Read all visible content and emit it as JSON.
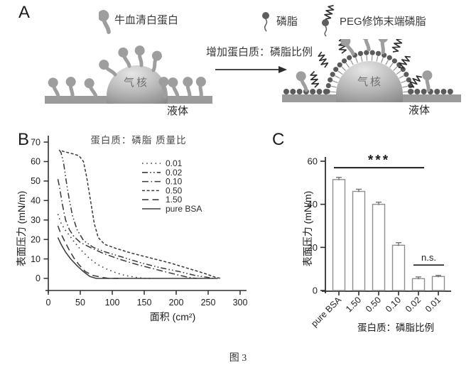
{
  "panels": {
    "a": "A",
    "b": "B",
    "c": "C"
  },
  "caption": "图 3",
  "panelA": {
    "legend_bsa": "牛血清白蛋白",
    "legend_lipid": "磷脂",
    "legend_peg": "PEG修饰末端磷脂",
    "arrow_label": "增加蛋白质：磷脂比例",
    "gas_core_left": "气核",
    "gas_core_right": "气核",
    "liquid_left": "液体",
    "liquid_right": "液体"
  },
  "colors": {
    "curve": "#3d3d3d",
    "axis": "#2f2f2f",
    "bar_outline": "#8f8f8f",
    "error_bar": "#6e6e6e",
    "schematic_gray": "#9b9b9b",
    "lipid_head": "#5b5b5b"
  },
  "chart_data": [
    {
      "type": "line",
      "title": "蛋白质：磷脂 质量比",
      "xlabel": "面积 (cm²)",
      "ylabel": "表面压力 (mN/m)",
      "xlim": [
        0,
        300
      ],
      "ylim": [
        0,
        70
      ],
      "xticks": [
        0,
        50,
        100,
        150,
        200,
        250,
        300
      ],
      "yticks": [
        0,
        10,
        20,
        30,
        40,
        50,
        60,
        70
      ],
      "legend_position": "upper-right-inside",
      "grid": false,
      "series": [
        {
          "name": "0.01",
          "style": "dotted",
          "points": [
            [
              15,
              33
            ],
            [
              19,
              29
            ],
            [
              25,
              25.5
            ],
            [
              32,
              22.5
            ],
            [
              40,
              19
            ],
            [
              50,
              15
            ],
            [
              62,
              11
            ],
            [
              75,
              7.5
            ],
            [
              90,
              5
            ],
            [
              105,
              3
            ],
            [
              120,
              1.5
            ],
            [
              138,
              0.5
            ],
            [
              152,
              0
            ],
            [
              165,
              0
            ]
          ]
        },
        {
          "name": "0.02",
          "style": "dash-dot-dot",
          "points": [
            [
              17,
              66
            ],
            [
              20,
              64.5
            ],
            [
              24,
              59
            ],
            [
              28,
              50
            ],
            [
              33,
              40
            ],
            [
              38,
              32
            ],
            [
              45,
              25
            ],
            [
              55,
              19.5
            ],
            [
              70,
              16
            ],
            [
              90,
              13.5
            ],
            [
              115,
              11
            ],
            [
              145,
              8
            ],
            [
              175,
              5.5
            ],
            [
              205,
              3.5
            ],
            [
              230,
              1.5
            ],
            [
              250,
              0.5
            ],
            [
              258,
              0
            ]
          ]
        },
        {
          "name": "0.10",
          "style": "dash-dot",
          "points": [
            [
              15,
              51
            ],
            [
              18,
              46
            ],
            [
              22,
              38
            ],
            [
              27,
              30
            ],
            [
              33,
              25
            ],
            [
              40,
              21.5
            ],
            [
              50,
              18.5
            ],
            [
              65,
              16
            ],
            [
              85,
              13
            ],
            [
              110,
              10
            ],
            [
              140,
              7
            ],
            [
              170,
              4.5
            ],
            [
              200,
              2
            ],
            [
              220,
              0.5
            ],
            [
              232,
              0
            ]
          ]
        },
        {
          "name": "0.50",
          "style": "dashed",
          "points": [
            [
              21,
              65.5
            ],
            [
              28,
              64.8
            ],
            [
              38,
              64
            ],
            [
              48,
              63
            ],
            [
              55,
              60
            ],
            [
              60,
              52
            ],
            [
              66,
              40
            ],
            [
              72,
              28
            ],
            [
              78,
              21
            ],
            [
              88,
              17.5
            ],
            [
              105,
              15.5
            ],
            [
              130,
              13
            ],
            [
              160,
              10.5
            ],
            [
              190,
              8
            ],
            [
              220,
              5
            ],
            [
              245,
              2.5
            ],
            [
              262,
              0.5
            ],
            [
              270,
              0
            ]
          ]
        },
        {
          "name": "1.50",
          "style": "long-dash",
          "points": [
            [
              15,
              27
            ],
            [
              19,
              23.5
            ],
            [
              25,
              19.5
            ],
            [
              32,
              15
            ],
            [
              40,
              10.5
            ],
            [
              48,
              7
            ],
            [
              58,
              3.5
            ],
            [
              70,
              1.5
            ],
            [
              85,
              0.5
            ],
            [
              95,
              0
            ],
            [
              110,
              0
            ]
          ]
        },
        {
          "name": "pure BSA",
          "style": "solid",
          "points": [
            [
              15,
              21
            ],
            [
              20,
              17.5
            ],
            [
              27,
              13.5
            ],
            [
              35,
              10
            ],
            [
              45,
              6.5
            ],
            [
              55,
              3.5
            ],
            [
              65,
              1
            ],
            [
              75,
              0
            ],
            [
              265,
              0
            ]
          ]
        }
      ]
    },
    {
      "type": "bar",
      "categories": [
        "pure BSA",
        "1.50",
        "0.50",
        "0.10",
        "0.02",
        "0.01"
      ],
      "values": [
        51.5,
        46,
        40,
        21,
        5.5,
        6.5
      ],
      "errors": [
        1,
        1,
        1,
        1.2,
        0.8,
        0.5
      ],
      "xlabel": "蛋白质：磷脂比例",
      "ylabel": "表面压力 (mN/m)",
      "ylim": [
        0,
        60
      ],
      "yticks": [
        0,
        20,
        40,
        60
      ],
      "annotations": [
        {
          "label": "***",
          "from": 0,
          "to": 4,
          "line_y": 57,
          "label_y": 58.5,
          "font_px": 19,
          "bold": true
        },
        {
          "label": "n.s.",
          "from": 4,
          "to": 5,
          "line_y": 11.8,
          "label_y": 13.8,
          "font_px": 13,
          "bold": false
        }
      ]
    }
  ]
}
